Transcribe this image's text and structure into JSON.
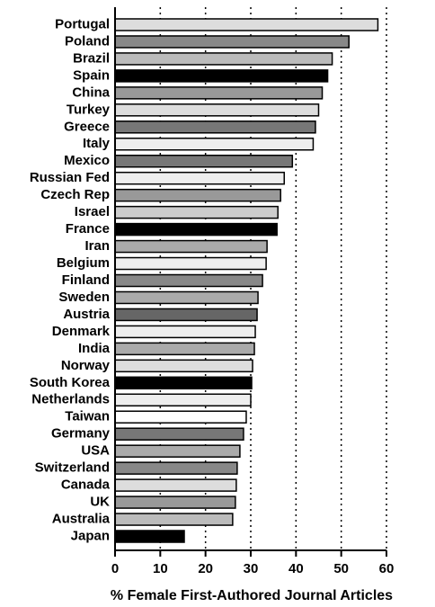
{
  "chart_data": {
    "type": "barh",
    "xlabel": "% Female First-Authored Journal Articles",
    "categories": [
      "Portugal",
      "Poland",
      "Brazil",
      "Spain",
      "China",
      "Turkey",
      "Greece",
      "Italy",
      "Mexico",
      "Russian Fed",
      "Czech Rep",
      "Israel",
      "France",
      "Iran",
      "Belgium",
      "Finland",
      "Sweden",
      "Austria",
      "Denmark",
      "India",
      "Norway",
      "South Korea",
      "Netherlands",
      "Taiwan",
      "Germany",
      "USA",
      "Switzerland",
      "Canada",
      "UK",
      "Australia",
      "Japan"
    ],
    "values": [
      58.1,
      51.7,
      48,
      47,
      45.8,
      45,
      44.3,
      43.8,
      39.2,
      37.4,
      36.6,
      36,
      35.8,
      33.6,
      33.4,
      32.6,
      31.6,
      31.4,
      31,
      30.8,
      30.4,
      30.2,
      30,
      29,
      28.4,
      27.6,
      27,
      26.8,
      26.6,
      26,
      15.3
    ],
    "colors": [
      "#dddddd",
      "#888888",
      "#bbbbbb",
      "#000000",
      "#999999",
      "#dddddd",
      "#777777",
      "#eeeeee",
      "#777777",
      "#eeeeee",
      "#999999",
      "#cccccc",
      "#000000",
      "#aaaaaa",
      "#eeeeee",
      "#888888",
      "#aaaaaa",
      "#666666",
      "#eeeeee",
      "#aaaaaa",
      "#dddddd",
      "#000000",
      "#eeeeee",
      "#ffffff",
      "#777777",
      "#aaaaaa",
      "#888888",
      "#dddddd",
      "#999999",
      "#bbbbbb",
      "#000000"
    ],
    "xlim": [
      0,
      60
    ],
    "xticks": [
      0,
      10,
      20,
      30,
      40,
      50,
      60
    ],
    "grid": true
  }
}
